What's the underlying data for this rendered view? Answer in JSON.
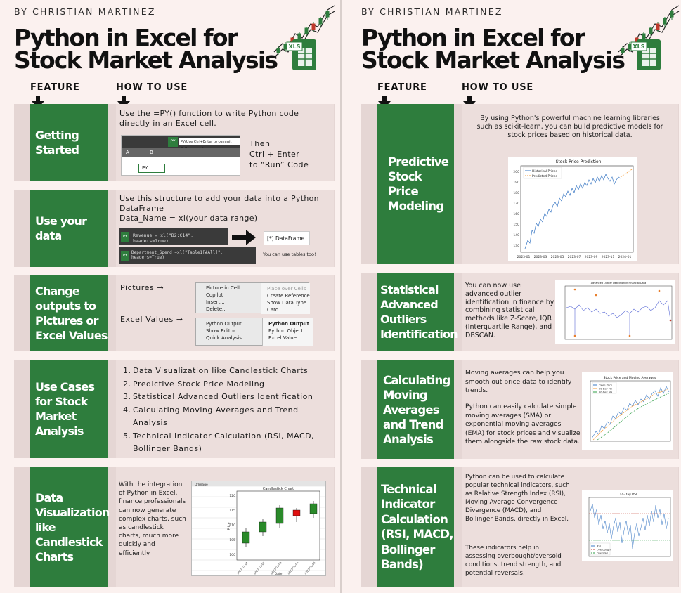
{
  "byline": "BY CHRISTIAN MARTINEZ",
  "title_line1": "Python in Excel for",
  "title_line2": "Stock Market Analysis",
  "logo_text": "XLS",
  "headers": {
    "feature": "FEATURE",
    "how_to_use": "HOW TO USE"
  },
  "left": {
    "getting_started": {
      "feature": "Getting Started",
      "text": "Use the =PY() function to write Python code directly in an Excel cell.",
      "then": "Then",
      "ctrl": "Ctrl + Enter",
      "run": "to “Run” Code",
      "shot_tooltip": "PY(Use Ctrl+Enter to commit Python code)",
      "shot_col_a": "A",
      "shot_col_b": "B",
      "shot_py": "PY"
    },
    "use_data": {
      "feature": "Use your data",
      "text1": "Use this structure to add your data into a Python DataFrame",
      "text2": "Data_Name = xl(your data range)",
      "code1": "Revenue = xl(\"B2:C14\", headers=True)",
      "code2": "Department_Spend =xl(\"Table1[#All]\", headers=True)",
      "py": "PY",
      "dataframe": "[*] DataFrame",
      "tables": "You can use tables too!"
    },
    "change_outputs": {
      "feature": "Change outputs to Pictures or Excel Values",
      "pictures": "Pictures →",
      "excel_values": "Excel Values →",
      "menu1": [
        "Picture in Cell",
        "Copilot",
        "Insert...",
        "Delete..."
      ],
      "menu1_right": [
        "Place over Cells",
        "Create Reference",
        "Show Data Type Card"
      ],
      "menu2": [
        "Python Output",
        "Show Editor",
        "Quick Analysis"
      ],
      "menu2_right": [
        "Python Output",
        "Python Object",
        "Excel Value"
      ]
    },
    "use_cases": {
      "feature": "Use Cases for Stock Market Analysis",
      "items": [
        {
          "num": "1.",
          "text": "Data Visualization like Candlestick Charts"
        },
        {
          "num": "2.",
          "text": "Predictive Stock Price Modeling"
        },
        {
          "num": "3.",
          "text": "Statistical Advanced Outliers Identification"
        },
        {
          "num": "4.",
          "text": "Calculating Moving Averages and Trend Analysis"
        },
        {
          "num": "5.",
          "text": "Technical Indicator Calculation (RSI, MACD, Bollinger Bands)"
        }
      ]
    },
    "candlestick": {
      "feature": "Data Visualization like Candlestick Charts",
      "text": "With the integration of Python in Excel, finance professionals can now generate complex charts, such as candlestick charts, much more quickly and efficiently",
      "chart_title": "Candlestick Chart",
      "sheet_label": "D'Image",
      "xlabel": "Date",
      "ylabel": "Price",
      "yticks": [
        "120",
        "115",
        "110",
        "105",
        "100"
      ],
      "xticks": [
        "2023-01-01",
        "2023-01-02",
        "2023-01-03",
        "2023-01-04",
        "2023-01-05"
      ]
    }
  },
  "right": {
    "predictive": {
      "feature": "Predictive Stock Price Modeling",
      "text": "By using Python's powerful machine learning libraries such as scikit-learn, you can build predictive models for stock prices based on historical data.",
      "chart_title": "Stock Price Prediction",
      "legend": [
        "Historical Prices",
        "Predicted Prices"
      ],
      "yticks": [
        "200",
        "190",
        "180",
        "170",
        "160",
        "150",
        "140",
        "130"
      ],
      "xticks": [
        "2023-01",
        "2023-03",
        "2023-05",
        "2023-07",
        "2023-09",
        "2023-11",
        "2024-01"
      ]
    },
    "outliers": {
      "feature": "Statistical Advanced Outliers Identification",
      "text": "You can now use advanced outlier identification in finance by combining statistical methods like Z-Score, IQR (Interquartile Range), and DBSCAN.",
      "chart_title": "Advanced Outlier Detection in Financial Data"
    },
    "moving_avg": {
      "feature": "Calculating Moving Averages and Trend Analysis",
      "text1": "Moving averages can help you smooth out price data to identify trends.",
      "text2": "Python can easily calculate simple moving averages (SMA) or exponential moving averages (EMA) for stock prices and visualize them alongside the raw stock data.",
      "chart_title": "Stock Price and Moving Averages",
      "legend": [
        "Close Price",
        "20-Day MA",
        "50-Day MA"
      ]
    },
    "technical": {
      "feature": "Technical Indicator Calculation (RSI, MACD, Bollinger Bands)",
      "text1": "Python can be used to calculate popular technical indicators, such as Relative Strength Index (RSI), Moving Average Convergence Divergence (MACD), and Bollinger Bands, directly in Excel.",
      "text2": "These indicators help in assessing overbought/oversold conditions, trend strength, and potential reversals.",
      "chart_title": "14-Day RSI",
      "legend": [
        "RSI",
        "Overbought",
        "Oversold"
      ]
    }
  },
  "colors": {
    "green": "#2e7d3d",
    "bg": "#fbf1ef",
    "row": "#e5d6d4",
    "box": "#ecdedc"
  }
}
